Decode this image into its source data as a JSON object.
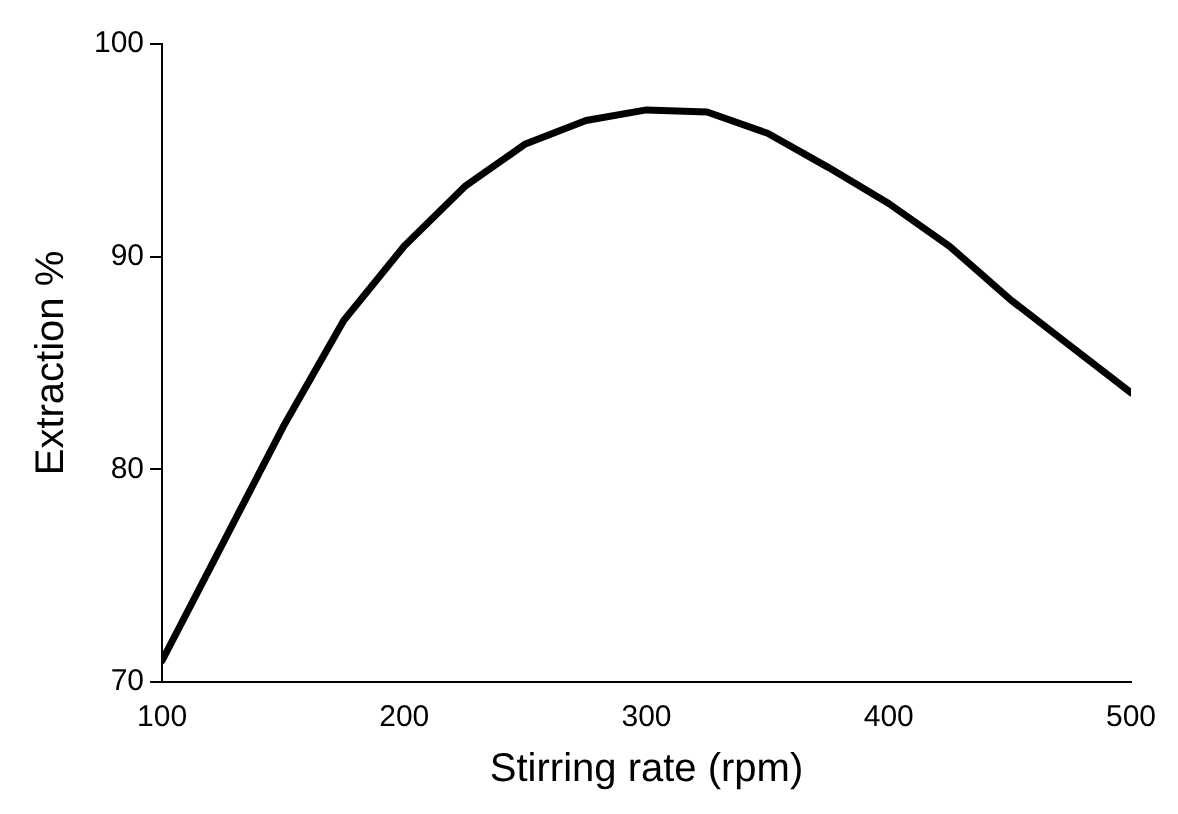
{
  "chart_data": {
    "type": "line",
    "xlabel": "Stirring rate (rpm)",
    "ylabel": "Extraction %",
    "x": [
      100,
      125,
      150,
      175,
      200,
      225,
      250,
      275,
      300,
      325,
      350,
      375,
      400,
      425,
      450,
      475,
      500
    ],
    "series": [
      {
        "color": "#000000",
        "values": [
          71,
          76.5,
          82,
          87,
          90.5,
          93.3,
          95.3,
          96.4,
          96.9,
          96.8,
          95.8,
          94.2,
          92.5,
          90.5,
          88,
          85.8,
          83.6
        ]
      }
    ],
    "xlim": [
      100,
      500
    ],
    "ylim": [
      70,
      100
    ],
    "xticks": [
      100,
      200,
      300,
      400,
      500
    ],
    "yticks": [
      70,
      80,
      90,
      100
    ],
    "grid": false,
    "legend": false,
    "marker": "none",
    "line_style": "solid"
  }
}
